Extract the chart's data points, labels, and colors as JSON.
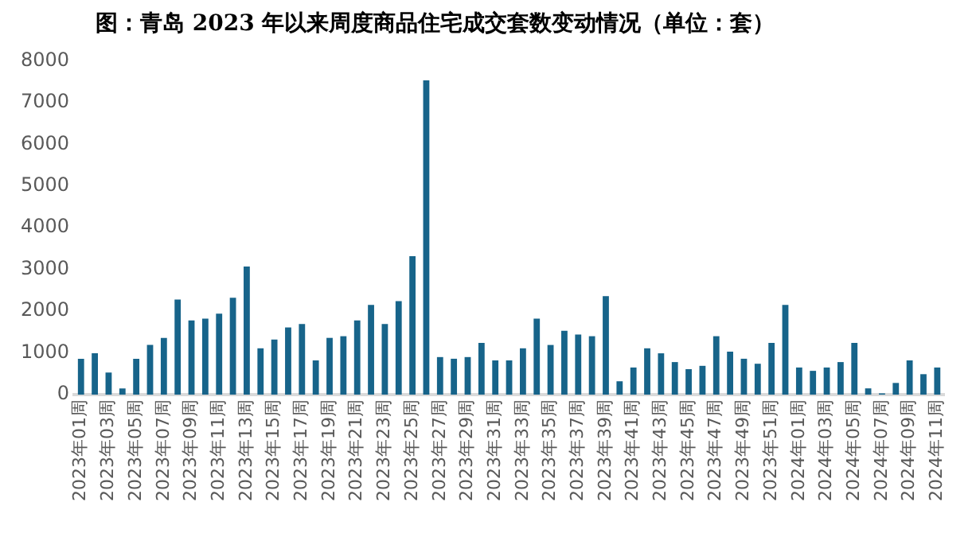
{
  "chart_data": {
    "type": "bar",
    "title": "图：青岛 2023 年以来周度商品住宅成交套数变动情况（单位：套）",
    "categories": [
      "2023年01周",
      null,
      "2023年03周",
      null,
      "2023年05周",
      null,
      "2023年07周",
      null,
      "2023年09周",
      null,
      "2023年11周",
      null,
      "2023年13周",
      null,
      "2023年15周",
      null,
      "2023年17周",
      null,
      "2023年19周",
      null,
      "2023年21周",
      null,
      "2023年23周",
      null,
      "2023年25周",
      null,
      "2023年27周",
      null,
      "2023年29周",
      null,
      "2023年31周",
      null,
      "2023年33周",
      null,
      "2023年35周",
      null,
      "2023年37周",
      null,
      "2023年39周",
      null,
      "2023年41周",
      null,
      "2023年43周",
      null,
      "2023年45周",
      null,
      "2023年47周",
      null,
      "2023年49周",
      null,
      "2023年51周",
      null,
      "2024年01周",
      null,
      "2024年03周",
      null,
      "2024年05周",
      null,
      "2024年07周",
      null,
      "2024年09周",
      null,
      "2024年11周"
    ],
    "values": [
      860,
      990,
      530,
      150,
      860,
      1190,
      1360,
      2280,
      1780,
      1820,
      1940,
      2320,
      3070,
      1110,
      1320,
      1610,
      1690,
      820,
      1360,
      1400,
      1780,
      2150,
      1690,
      2240,
      3320,
      7530,
      900,
      860,
      900,
      1240,
      820,
      820,
      1110,
      1820,
      1190,
      1530,
      1440,
      1400,
      2360,
      320,
      650,
      1110,
      990,
      780,
      610,
      690,
      1400,
      1030,
      860,
      740,
      1240,
      2150,
      650,
      570,
      650,
      780,
      1240,
      150,
      30,
      280,
      820,
      490,
      650
    ],
    "color": "#17648a",
    "ylim": [
      0,
      8000
    ],
    "yticks": [
      0,
      1000,
      2000,
      3000,
      4000,
      5000,
      6000,
      7000,
      8000
    ],
    "grid": false,
    "legend": false
  }
}
